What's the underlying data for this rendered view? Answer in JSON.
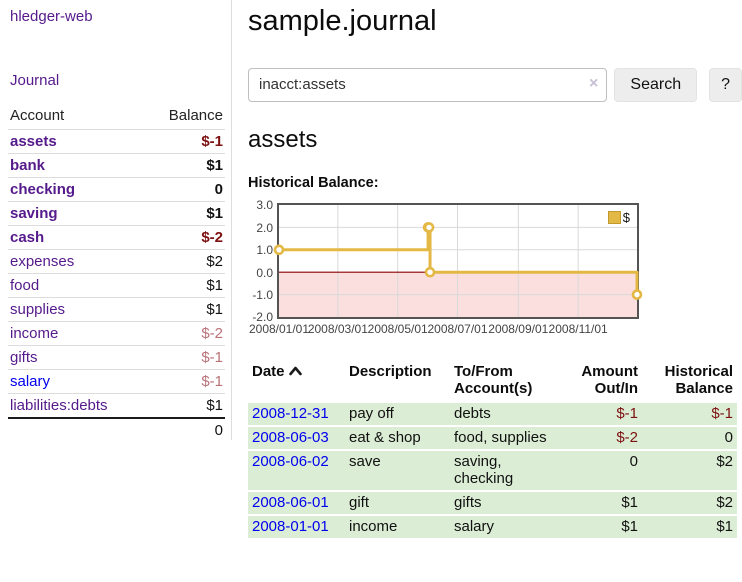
{
  "sidebar": {
    "app_title": "hledger-web",
    "journal_label": "Journal",
    "table": {
      "account_header": "Account",
      "balance_header": "Balance",
      "rows": [
        {
          "label": "assets",
          "depth": 0,
          "bold": true,
          "link": "purple",
          "balance": "$-1",
          "balance_style": "darkred"
        },
        {
          "label": "bank",
          "depth": 1,
          "bold": true,
          "link": "purple",
          "balance": "$1",
          "balance_style": "black"
        },
        {
          "label": "checking",
          "depth": 2,
          "bold": true,
          "link": "purple",
          "balance": "0",
          "balance_style": "black"
        },
        {
          "label": "saving",
          "depth": 2,
          "bold": true,
          "link": "purple",
          "balance": "$1",
          "balance_style": "black"
        },
        {
          "label": "cash",
          "depth": 1,
          "bold": true,
          "link": "purple",
          "balance": "$-2",
          "balance_style": "darkred"
        },
        {
          "label": "expenses",
          "depth": 0,
          "bold": false,
          "link": "purple",
          "balance": "$2",
          "balance_style": "black"
        },
        {
          "label": "food",
          "depth": 1,
          "bold": false,
          "link": "purple",
          "balance": "$1",
          "balance_style": "black"
        },
        {
          "label": "supplies",
          "depth": 1,
          "bold": false,
          "link": "purple",
          "balance": "$1",
          "balance_style": "black"
        },
        {
          "label": "income",
          "depth": 0,
          "bold": false,
          "link": "purple",
          "balance": "$-2",
          "balance_style": "rose"
        },
        {
          "label": "gifts",
          "depth": 1,
          "bold": false,
          "link": "purple",
          "balance": "$-1",
          "balance_style": "rose"
        },
        {
          "label": "salary",
          "depth": 1,
          "bold": false,
          "link": "blue",
          "balance": "$-1",
          "balance_style": "rose"
        },
        {
          "label": "liabilities:debts",
          "depth": 0,
          "bold": false,
          "link": "purple",
          "balance": "$1",
          "balance_style": "black"
        }
      ],
      "total": "0"
    }
  },
  "main": {
    "title": "sample.journal",
    "search": {
      "value": "inacct:assets",
      "clear_icon": "×",
      "button_label": "Search",
      "help_label": "?"
    },
    "account_heading": "assets",
    "chart_label": "Historical Balance:"
  },
  "chart_data": {
    "type": "line",
    "step": true,
    "title": "Historical Balance",
    "series": [
      {
        "name": "$",
        "color": "#e4b845",
        "points": [
          [
            "2008-01-01",
            1
          ],
          [
            "2008-06-01",
            2
          ],
          [
            "2008-06-02",
            2
          ],
          [
            "2008-06-03",
            0
          ],
          [
            "2008-12-31",
            -1
          ]
        ]
      }
    ],
    "xlim": [
      "2008-01-01",
      "2008-12-31"
    ],
    "ylim": [
      -2,
      3
    ],
    "yticks": [
      "3.0",
      "2.0",
      "1.0",
      "0.0",
      "-1.0",
      "-2.0"
    ],
    "xticks": [
      {
        "date": "2008-01-01",
        "label": "2008/01/01"
      },
      {
        "date": "2008-03-01",
        "label": "2008/03/01"
      },
      {
        "date": "2008-05-01",
        "label": "2008/05/01"
      },
      {
        "date": "2008-07-01",
        "label": "2008/07/01"
      },
      {
        "date": "2008-09-01",
        "label": "2008/09/01"
      },
      {
        "date": "2008-11-01",
        "label": "2008/11/01"
      }
    ],
    "legend": {
      "label": "$",
      "position": "top-right"
    },
    "grid": true,
    "negative_region_color": "#fbdede",
    "zero_line_color": "#8b0000"
  },
  "register": {
    "headers": {
      "date": "Date",
      "description": "Description",
      "tofrom": "To/From Account(s)",
      "amount": "Amount Out/In",
      "historical": "Historical Balance"
    },
    "rows": [
      {
        "date": "2008-12-31",
        "description": "pay off",
        "accounts": "debts",
        "amount": "$-1",
        "amount_negative": true,
        "historical": "$-1",
        "historical_negative": true
      },
      {
        "date": "2008-06-03",
        "description": "eat & shop",
        "accounts": "food, supplies",
        "amount": "$-2",
        "amount_negative": true,
        "historical": "0",
        "historical_negative": false
      },
      {
        "date": "2008-06-02",
        "description": "save",
        "accounts": "saving, checking",
        "amount": "0",
        "amount_negative": false,
        "historical": "$2",
        "historical_negative": false
      },
      {
        "date": "2008-06-01",
        "description": "gift",
        "accounts": "gifts",
        "amount": "$1",
        "amount_negative": false,
        "historical": "$2",
        "historical_negative": false
      },
      {
        "date": "2008-01-01",
        "description": "income",
        "accounts": "salary",
        "amount": "$1",
        "amount_negative": false,
        "historical": "$1",
        "historical_negative": false
      }
    ]
  },
  "colors": {
    "purple_link": "#551a8b",
    "blue_link": "#0000ee",
    "negative_strong": "#7d1010",
    "negative_faded": "#b97277",
    "row_green": "#dcedd5",
    "chart_gold": "#e4b845",
    "chart_negative_bg": "#fbdede",
    "zero_line": "#8b0000"
  }
}
